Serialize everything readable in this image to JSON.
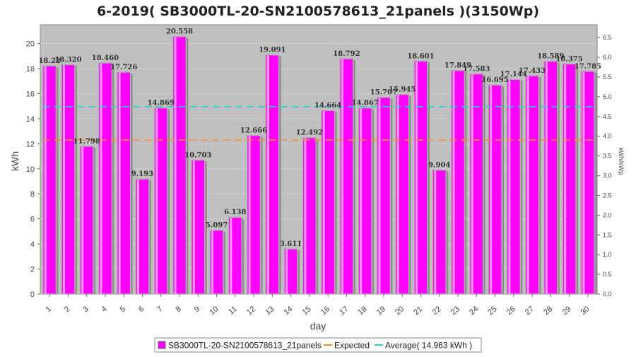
{
  "chart_data": {
    "type": "bar",
    "title": "6-2019( SB3000TL-20-SN2100578613_21panels )(3150Wp)",
    "xlabel": "day",
    "ylabel": "kWh",
    "y2label": "kWh/kWp",
    "categories": [
      "1",
      "2",
      "3",
      "4",
      "5",
      "6",
      "7",
      "8",
      "9",
      "10",
      "11",
      "12",
      "13",
      "14",
      "15",
      "16",
      "17",
      "18",
      "19",
      "20",
      "21",
      "22",
      "23",
      "24",
      "25",
      "26",
      "27",
      "28",
      "29",
      "30"
    ],
    "series": [
      {
        "name": "SB3000TL-20-SN2100578613_21panels",
        "color": "#ff00ff",
        "values": [
          18.22,
          18.32,
          11.798,
          18.46,
          17.726,
          9.193,
          14.869,
          20.558,
          10.703,
          5.097,
          6.138,
          12.666,
          19.091,
          3.611,
          12.492,
          14.664,
          18.792,
          14.867,
          15.707,
          15.945,
          18.601,
          9.904,
          17.849,
          17.583,
          16.695,
          17.144,
          17.433,
          18.589,
          18.375,
          17.785
        ]
      }
    ],
    "data_labels": [
      "18.22",
      "18.320",
      "11.798",
      "18.460",
      "17.726",
      "9.193",
      "14.869",
      "20.558",
      "10.703",
      "5.097",
      "6.138",
      "12.666",
      "19.091",
      "3.611",
      "12.492",
      "14.664",
      "18.792",
      "14.867",
      "15.707",
      "15.945",
      "18.601",
      "9.904",
      "17.849",
      "17.583",
      "16.695",
      "17.144",
      "17.433",
      "18.589",
      "18.375",
      "17.785"
    ],
    "expected": {
      "name": "Expected",
      "value": 12.3,
      "color": "#ff8c33"
    },
    "average": {
      "name": "Average( 14.963 kWh )",
      "value": 14.963,
      "color": "#33cccc"
    },
    "ylim": [
      0,
      21.5
    ],
    "yticks": [
      0,
      2,
      4,
      6,
      8,
      10,
      12,
      14,
      16,
      18,
      20
    ],
    "y2lim": [
      0,
      6.825
    ],
    "y2ticks": [
      "0.0",
      "0.5",
      "1.0",
      "1.5",
      "2.0",
      "2.5",
      "3.0",
      "3.5",
      "4.0",
      "4.5",
      "5.0",
      "5.5",
      "6.0",
      "6.5"
    ],
    "grid": true,
    "legend_position": "bottom-center",
    "plot_background": "#c0c0c0"
  }
}
